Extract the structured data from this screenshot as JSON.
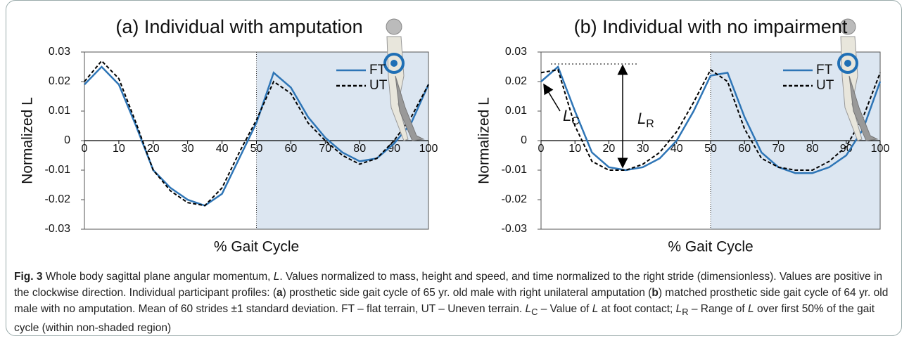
{
  "chart_data": [
    {
      "type": "line",
      "title": "(a) Individual with amputation",
      "xlabel": "% Gait Cycle",
      "ylabel": "Normalized L",
      "x": [
        0,
        5,
        10,
        15,
        20,
        25,
        30,
        35,
        40,
        45,
        50,
        55,
        60,
        65,
        70,
        75,
        80,
        85,
        90,
        95,
        100
      ],
      "series": [
        {
          "name": "FT",
          "color": "#2e75b6",
          "line_style": "solid",
          "values": [
            0.019,
            0.025,
            0.019,
            0.005,
            -0.01,
            -0.016,
            -0.02,
            -0.022,
            -0.018,
            -0.006,
            0.006,
            0.023,
            0.018,
            0.008,
            0.001,
            -0.004,
            -0.007,
            -0.006,
            -0.001,
            0.006,
            0.019
          ]
        },
        {
          "name": "UT",
          "color": "#000000",
          "line_style": "dashed",
          "values": [
            0.02,
            0.027,
            0.021,
            0.006,
            -0.01,
            -0.017,
            -0.021,
            -0.022,
            -0.016,
            -0.004,
            0.007,
            0.02,
            0.016,
            0.006,
            0.0,
            -0.005,
            -0.008,
            -0.006,
            0.0,
            0.008,
            0.019
          ]
        }
      ],
      "xlim": [
        0,
        100
      ],
      "xticks": [
        0,
        10,
        20,
        30,
        40,
        50,
        60,
        70,
        80,
        90,
        100
      ],
      "ylim": [
        -0.03,
        0.03
      ],
      "yticks": [
        0.03,
        0.02,
        0.01,
        0,
        -0.01,
        -0.02,
        -0.03
      ],
      "shaded_xrange": [
        50,
        100
      ],
      "shade_color": "#dce6f1"
    },
    {
      "type": "line",
      "title": "(b) Individual with no impairment",
      "xlabel": "% Gait Cycle",
      "ylabel": "Normalized L",
      "x": [
        0,
        5,
        10,
        15,
        20,
        25,
        30,
        35,
        40,
        45,
        50,
        55,
        60,
        65,
        70,
        75,
        80,
        85,
        90,
        95,
        100
      ],
      "series": [
        {
          "name": "FT",
          "color": "#2e75b6",
          "line_style": "solid",
          "values": [
            0.02,
            0.025,
            0.01,
            -0.004,
            -0.009,
            -0.01,
            -0.009,
            -0.006,
            0.0,
            0.01,
            0.022,
            0.023,
            0.008,
            -0.004,
            -0.009,
            -0.011,
            -0.011,
            -0.009,
            -0.005,
            0.004,
            0.02
          ]
        },
        {
          "name": "UT",
          "color": "#000000",
          "line_style": "dashed",
          "values": [
            0.023,
            0.024,
            0.005,
            -0.007,
            -0.01,
            -0.01,
            -0.008,
            -0.004,
            0.003,
            0.013,
            0.024,
            0.02,
            0.004,
            -0.006,
            -0.009,
            -0.01,
            -0.01,
            -0.007,
            -0.002,
            0.008,
            0.023
          ]
        }
      ],
      "xlim": [
        0,
        100
      ],
      "xticks": [
        0,
        10,
        20,
        30,
        40,
        50,
        60,
        70,
        80,
        90,
        100
      ],
      "ylim": [
        -0.03,
        0.03
      ],
      "yticks": [
        0.03,
        0.02,
        0.01,
        0,
        -0.01,
        -0.02,
        -0.03
      ],
      "shaded_xrange": [
        50,
        100
      ],
      "shade_color": "#dce6f1",
      "annotations": [
        {
          "symbol": "L",
          "subscript": "C"
        },
        {
          "symbol": "L",
          "subscript": "R"
        }
      ]
    }
  ],
  "caption": [
    "Fig. 3",
    " Whole body sagittal plane angular momentum, ",
    "L",
    ". Values normalized to mass, height and speed, and time normalized to the right stride (dimensionless). Values are positive in the clockwise direction. Individual participant profiles: (",
    "a",
    ") prosthetic side gait cycle of 65 yr. old male with right unilateral amputation (",
    "b",
    ") matched prosthetic side gait cycle of 64 yr. old male with no amputation. Mean of 60 strides ±1 standard deviation. FT – flat terrain, UT – Uneven terrain. ",
    "L",
    "C",
    " – Value of ",
    "L",
    " at foot contact; ",
    "L",
    "R",
    " – Range of ",
    "L",
    " over first 50% of the gait cycle (within non-shaded region)"
  ]
}
